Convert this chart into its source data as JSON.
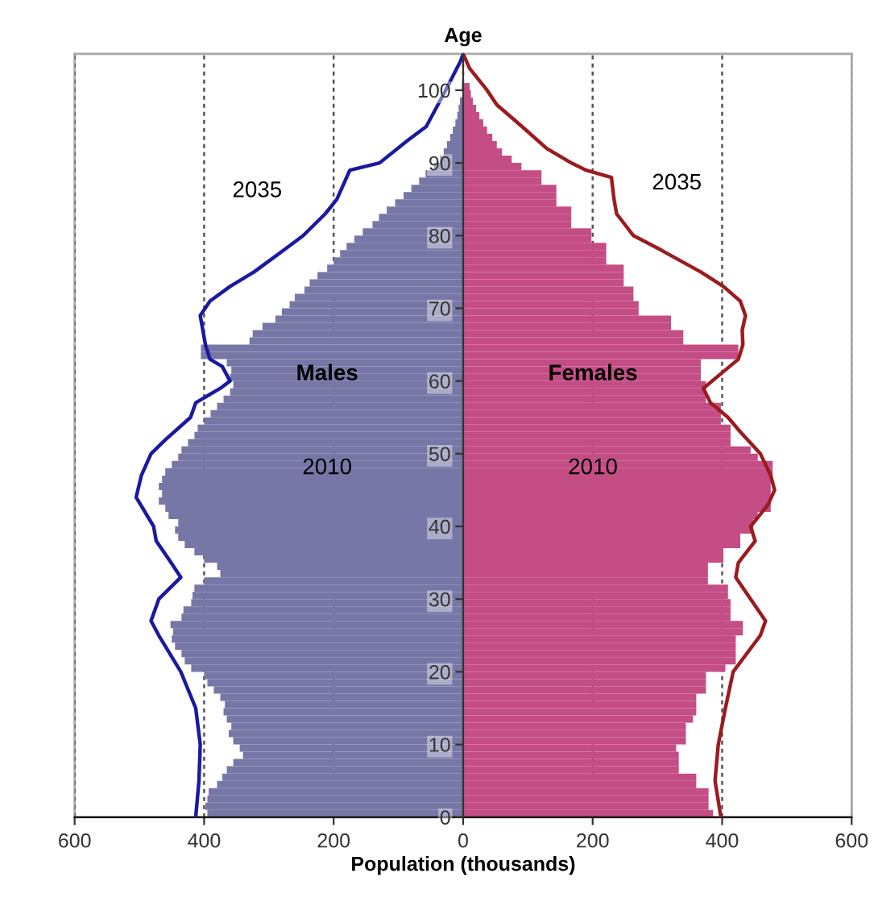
{
  "chart_data": {
    "type": "bar",
    "orientation": "horizontal",
    "stacked": true,
    "ylabel": "Age",
    "xlabel": "Population (thousands)",
    "x": [
      0,
      1,
      2,
      3,
      4,
      5,
      6,
      7,
      8,
      9,
      10,
      11,
      12,
      13,
      14,
      15,
      16,
      17,
      18,
      19,
      20,
      21,
      22,
      23,
      24,
      25,
      26,
      27,
      28,
      29,
      30,
      31,
      32,
      33,
      34,
      35,
      36,
      37,
      38,
      39,
      40,
      41,
      42,
      43,
      44,
      45,
      46,
      47,
      48,
      49,
      50,
      51,
      52,
      53,
      54,
      55,
      56,
      57,
      58,
      59,
      60,
      61,
      62,
      63,
      64,
      65,
      66,
      67,
      68,
      69,
      70,
      71,
      72,
      73,
      74,
      75,
      76,
      77,
      78,
      79,
      80,
      81,
      82,
      83,
      84,
      85,
      86,
      87,
      88,
      89,
      90,
      91,
      92,
      93,
      94,
      95,
      96,
      97,
      98,
      99,
      100
    ],
    "series": [
      {
        "color": "#7677a6",
        "values": [
          -395,
          -398,
          -395,
          -393,
          -380,
          -372,
          -365,
          -355,
          -340,
          -345,
          -355,
          -362,
          -358,
          -365,
          -370,
          -368,
          -375,
          -385,
          -395,
          -400,
          -420,
          -430,
          -435,
          -445,
          -450,
          -448,
          -452,
          -435,
          -432,
          -420,
          -418,
          -415,
          -400,
          -375,
          -380,
          -400,
          -415,
          -430,
          -440,
          -445,
          -440,
          -455,
          -460,
          -470,
          -465,
          -470,
          -465,
          -460,
          -450,
          -440,
          -435,
          -425,
          -415,
          -410,
          -400,
          -390,
          -380,
          -370,
          -360,
          -355,
          -360,
          -358,
          -365,
          -405,
          -405,
          -330,
          -325,
          -310,
          -290,
          -280,
          -268,
          -260,
          -245,
          -237,
          -225,
          -210,
          -200,
          -190,
          -180,
          -168,
          -155,
          -140,
          -130,
          -118,
          -105,
          -92,
          -80,
          -68,
          -58,
          -45,
          -36,
          -30,
          -25,
          -20,
          -16,
          -12,
          -9,
          -7,
          -5,
          null,
          -2
        ]
      },
      {
        "color": "#c44d85",
        "values": [
          386,
          379,
          379,
          379,
          360,
          360,
          333,
          333,
          333,
          329,
          344,
          344,
          344,
          355,
          360,
          360,
          360,
          375,
          375,
          375,
          405,
          421,
          421,
          421,
          421,
          432,
          432,
          413,
          413,
          413,
          409,
          409,
          378,
          378,
          378,
          402,
          402,
          428,
          428,
          448,
          448,
          455,
          475,
          475,
          475,
          475,
          478,
          478,
          478,
          455,
          444,
          413,
          413,
          413,
          398,
          398,
          398,
          375,
          375,
          375,
          367,
          367,
          367,
          425,
          425,
          340,
          340,
          321,
          321,
          271,
          271,
          263,
          263,
          248,
          248,
          248,
          221,
          221,
          221,
          198,
          198,
          167,
          167,
          167,
          144,
          144,
          144,
          121,
          121,
          90,
          75,
          60,
          52,
          45,
          37,
          31,
          25,
          20,
          15,
          12,
          10
        ]
      },
      {
        "type": "line",
        "color": "#1a1aa0",
        "x": [
          0,
          5,
          10,
          15,
          20,
          25,
          27,
          30,
          33,
          35,
          38,
          40,
          44,
          47,
          50,
          52,
          55,
          57,
          59,
          60,
          62,
          63,
          65,
          67,
          69,
          71,
          73,
          75,
          78,
          80,
          83,
          85,
          88,
          89,
          90,
          93,
          95,
          100,
          104,
          105
        ],
        "values": [
          -413,
          -408,
          -406,
          -413,
          -436,
          -470,
          -482,
          -470,
          -436,
          -451,
          -474,
          -478,
          -505,
          -497,
          -482,
          -459,
          -421,
          -413,
          -375,
          -360,
          -372,
          -391,
          -398,
          -402,
          -406,
          -391,
          -360,
          -323,
          -277,
          -247,
          -213,
          -195,
          -180,
          -175,
          -129,
          -87,
          -57,
          -27,
          -4,
          0
        ]
      },
      {
        "type": "line",
        "color": "#9b1b1e",
        "x": [
          0,
          5,
          10,
          15,
          20,
          25,
          27,
          30,
          33,
          35,
          38,
          40,
          43,
          45,
          47,
          50,
          53,
          55,
          57,
          59,
          61,
          63,
          65,
          67,
          69,
          71,
          73,
          75,
          78,
          80,
          83,
          85,
          88,
          89,
          90,
          92,
          95,
          98,
          100,
          103,
          105
        ],
        "values": [
          398,
          389,
          394,
          405,
          417,
          459,
          467,
          444,
          421,
          425,
          451,
          444,
          471,
          481,
          475,
          459,
          428,
          409,
          382,
          371,
          398,
          425,
          432,
          431,
          436,
          428,
          402,
          367,
          306,
          263,
          237,
          233,
          229,
          190,
          167,
          129,
          91,
          52,
          37,
          10,
          0
        ]
      }
    ],
    "xlim": [
      -600,
      600
    ],
    "xticks": [
      {
        "value": -600,
        "label": "600"
      },
      {
        "value": -400,
        "label": "400"
      },
      {
        "value": -200,
        "label": "200"
      },
      0,
      200,
      400,
      600
    ],
    "ylim": [
      0,
      105
    ],
    "yticks": [
      0,
      10,
      20,
      30,
      40,
      50,
      60,
      70,
      80,
      90,
      100
    ],
    "grid": "x",
    "annotations": [
      "2035",
      "2035",
      "Males",
      "Females",
      "2010",
      "2010"
    ]
  }
}
